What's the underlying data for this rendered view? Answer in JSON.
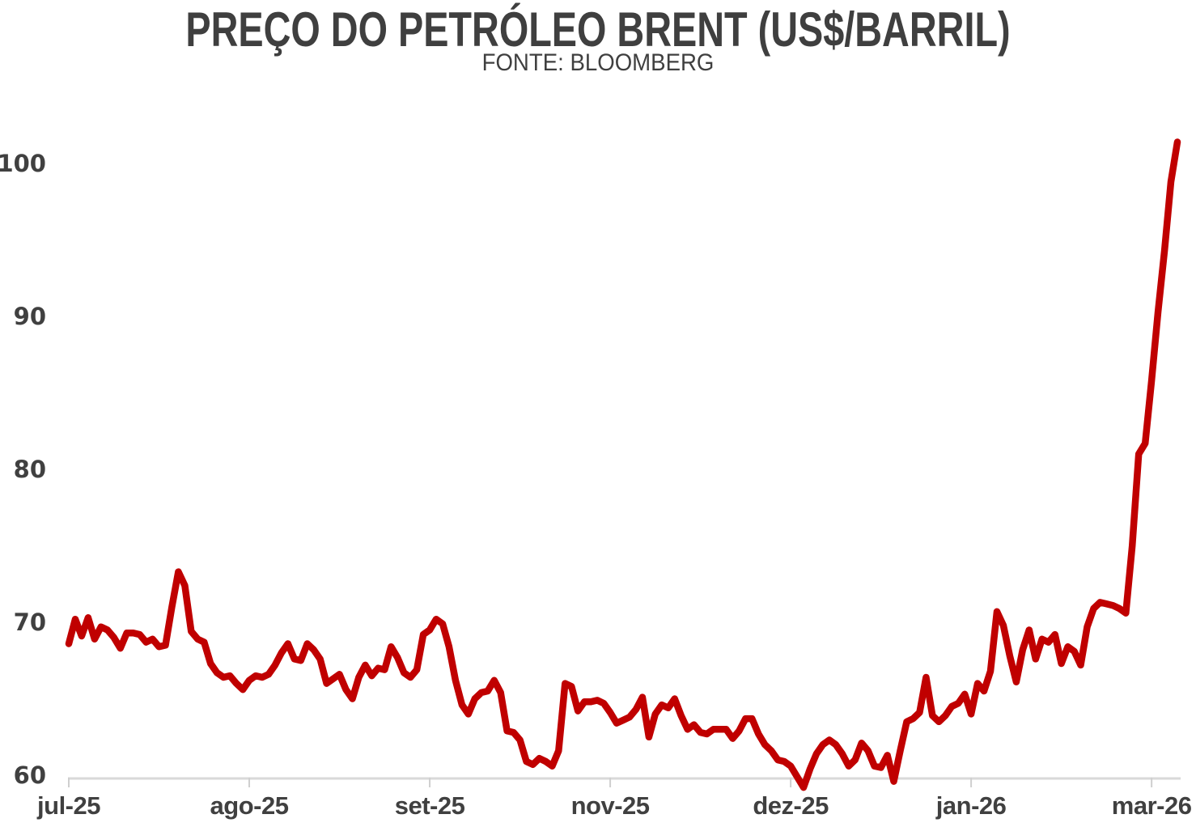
{
  "chart_data": {
    "type": "line",
    "title": "PREÇO DO PETRÓLEO BRENT (US$/BARRIL)",
    "subtitle": "FONTE: BLOOMBERG",
    "unit": "US$/barril",
    "grid": false,
    "legend_position": "none",
    "colors": {
      "line": "#c00000",
      "axis_line": "#d9d9d9",
      "tick_mark": "#cfcfcf",
      "label_text": "#404040",
      "title_text": "#3f3f3f",
      "background": "#ffffff"
    },
    "y_ticks": [
      60,
      70,
      80,
      90,
      100
    ],
    "ylim": [
      59,
      102
    ],
    "x_tick_labels": [
      "jul-25",
      "ago-25",
      "set-25",
      "nov-25",
      "dez-25",
      "jan-26",
      "mar-26"
    ],
    "x_tick_indices": [
      0,
      28,
      56,
      84,
      112,
      140,
      168
    ],
    "series": [
      {
        "name": "Preço do petróleo Brent",
        "color": "#c00000",
        "values": [
          68.6,
          70.2,
          69.1,
          70.3,
          68.9,
          69.7,
          69.5,
          69.0,
          68.3,
          69.3,
          69.3,
          69.2,
          68.7,
          68.9,
          68.4,
          68.5,
          71.0,
          73.3,
          72.4,
          69.4,
          68.9,
          68.7,
          67.3,
          66.7,
          66.4,
          66.5,
          66.0,
          65.6,
          66.2,
          66.5,
          66.4,
          66.6,
          67.2,
          68.0,
          68.6,
          67.6,
          67.5,
          68.6,
          68.2,
          67.6,
          66.0,
          66.3,
          66.6,
          65.6,
          65.0,
          66.4,
          67.2,
          66.5,
          67.0,
          66.9,
          68.4,
          67.7,
          66.7,
          66.4,
          66.9,
          69.2,
          69.5,
          70.2,
          69.9,
          68.4,
          66.2,
          64.6,
          64.0,
          65.0,
          65.4,
          65.5,
          66.2,
          65.4,
          62.9,
          62.8,
          62.3,
          60.9,
          60.7,
          61.1,
          60.9,
          60.6,
          61.6,
          66.0,
          65.8,
          64.2,
          64.8,
          64.8,
          64.9,
          64.7,
          64.1,
          63.4,
          63.6,
          63.8,
          64.3,
          65.1,
          62.5,
          64.0,
          64.6,
          64.4,
          65.0,
          63.9,
          63.0,
          63.3,
          62.8,
          62.7,
          63.0,
          63.0,
          63.0,
          62.4,
          62.9,
          63.7,
          63.7,
          62.7,
          62.0,
          61.6,
          61.0,
          60.9,
          60.6,
          59.9,
          59.2,
          60.4,
          61.4,
          62.0,
          62.3,
          62.0,
          61.4,
          60.6,
          61.0,
          62.1,
          61.6,
          60.6,
          60.5,
          61.3,
          59.6,
          61.6,
          63.5,
          63.7,
          64.1,
          66.4,
          63.9,
          63.5,
          63.9,
          64.5,
          64.7,
          65.3,
          64.0,
          66.0,
          65.5,
          66.8,
          70.7,
          69.8,
          67.8,
          66.1,
          68.2,
          69.5,
          67.6,
          68.9,
          68.7,
          69.2,
          67.3,
          68.4,
          68.1,
          67.2,
          69.7,
          70.9,
          71.3,
          71.2,
          71.1,
          70.9,
          70.6,
          75.0,
          81.0,
          81.7,
          85.8,
          90.3,
          94.3,
          98.8,
          101.4
        ]
      }
    ]
  }
}
